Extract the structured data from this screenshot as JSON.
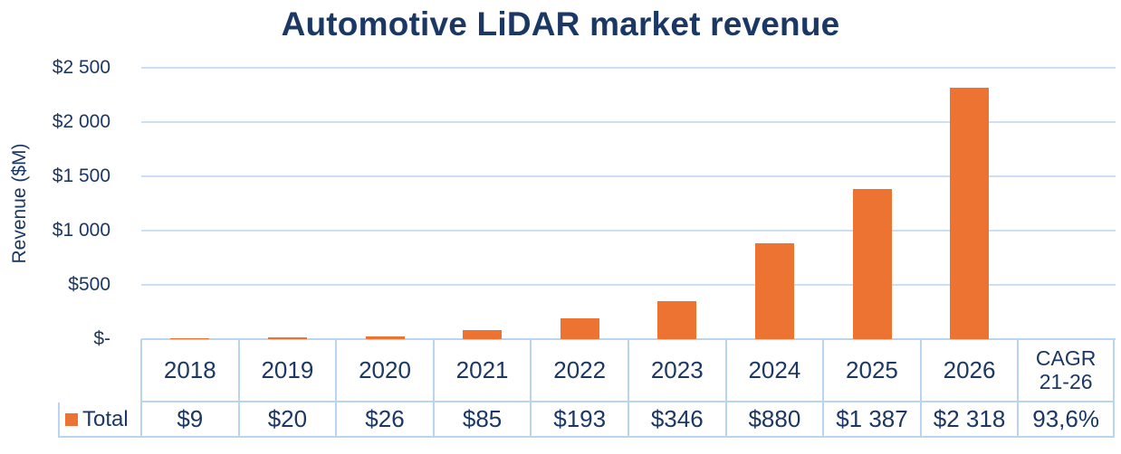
{
  "chart_data": {
    "type": "bar",
    "title": "Automotive LiDAR market revenue",
    "ylabel": "Revenue ($M)",
    "xlabel": "",
    "categories": [
      "2018",
      "2019",
      "2020",
      "2021",
      "2022",
      "2023",
      "2024",
      "2025",
      "2026"
    ],
    "series": [
      {
        "name": "Total",
        "values": [
          9,
          20,
          26,
          85,
          193,
          346,
          880,
          1387,
          2318
        ]
      }
    ],
    "value_labels": [
      "$9",
      "$20",
      "$26",
      "$85",
      "$193",
      "$346",
      "$880",
      "$1 387",
      "$2 318"
    ],
    "ytick_values": [
      0,
      500,
      1000,
      1500,
      2000,
      2500
    ],
    "ytick_labels": [
      "$-",
      "$500",
      "$1 000",
      "$1 500",
      "$2 000",
      "$2 500"
    ],
    "ylim": [
      0,
      2500
    ],
    "grid": true,
    "legend_position": "data-table-left",
    "extra_column": {
      "header_lines": [
        "CAGR",
        "21-26"
      ],
      "value": "93,6%"
    },
    "colors": {
      "bar": "#ED7332",
      "text": "#1B3764",
      "gridline": "#CBDFF5",
      "table_border": "#B9D5F0"
    }
  }
}
